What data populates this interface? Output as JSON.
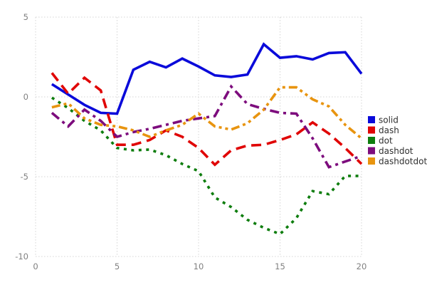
{
  "chart_data": {
    "type": "line",
    "title": "",
    "xlabel": "",
    "ylabel": "",
    "x": [
      1,
      2,
      3,
      4,
      5,
      6,
      7,
      8,
      9,
      10,
      11,
      12,
      13,
      14,
      15,
      16,
      17,
      18,
      19,
      20
    ],
    "series": [
      {
        "name": "solid",
        "color": "#0a0ada",
        "style": "solid",
        "values": [
          0.8,
          0.15,
          -0.5,
          -1.0,
          -1.05,
          1.7,
          2.2,
          1.85,
          2.4,
          1.9,
          1.35,
          1.25,
          1.4,
          3.3,
          2.45,
          2.55,
          2.35,
          2.75,
          2.8,
          1.45
        ]
      },
      {
        "name": "dash",
        "color": "#e00505",
        "style": "dash",
        "values": [
          1.5,
          0.2,
          1.2,
          0.4,
          -3.0,
          -3.0,
          -2.7,
          -2.1,
          -2.5,
          -3.2,
          -4.25,
          -3.35,
          -3.05,
          -3.0,
          -2.7,
          -2.35,
          -1.6,
          -2.3,
          -3.2,
          -4.2
        ]
      },
      {
        "name": "dot",
        "color": "#0e7d0e",
        "style": "dot",
        "values": [
          -0.05,
          -0.7,
          -1.5,
          -2.1,
          -3.2,
          -3.35,
          -3.3,
          -3.65,
          -4.2,
          -4.65,
          -6.3,
          -6.9,
          -7.7,
          -8.2,
          -8.6,
          -7.6,
          -5.9,
          -6.1,
          -4.95,
          -4.95
        ]
      },
      {
        "name": "dashdot",
        "color": "#7d0c7d",
        "style": "dashdot",
        "values": [
          -1.0,
          -1.85,
          -0.8,
          -1.5,
          -2.5,
          -2.2,
          -2.0,
          -1.75,
          -1.5,
          -1.35,
          -1.2,
          0.65,
          -0.45,
          -0.75,
          -1.0,
          -1.05,
          -2.6,
          -4.4,
          -4.05,
          -3.7
        ]
      },
      {
        "name": "dashdotdot",
        "color": "#e8940f",
        "style": "dashdotdot",
        "values": [
          -0.65,
          -0.4,
          -1.35,
          -1.75,
          -1.85,
          -2.1,
          -2.5,
          -2.1,
          -1.75,
          -1.05,
          -1.85,
          -2.05,
          -1.65,
          -0.8,
          0.6,
          0.6,
          -0.15,
          -0.6,
          -1.75,
          -2.6
        ]
      }
    ],
    "xlim": [
      0,
      20
    ],
    "ylim": [
      -10,
      5
    ],
    "xticks": [
      "0",
      "5",
      "10",
      "15",
      "20"
    ],
    "xtick_values": [
      0,
      5,
      10,
      15,
      20
    ],
    "yticks": [
      "5",
      "0",
      "-5",
      "-10"
    ],
    "ytick_values": [
      5,
      0,
      -5,
      -10
    ],
    "grid": true,
    "legend_position": "right",
    "legend_entries": [
      "solid",
      "dash",
      "dot",
      "dashdot",
      "dashdotdot"
    ],
    "background": "#ffffff",
    "grid_color": "#d4d4d4",
    "tick_label_color": "#808080",
    "legend_text_color": "#303030"
  }
}
